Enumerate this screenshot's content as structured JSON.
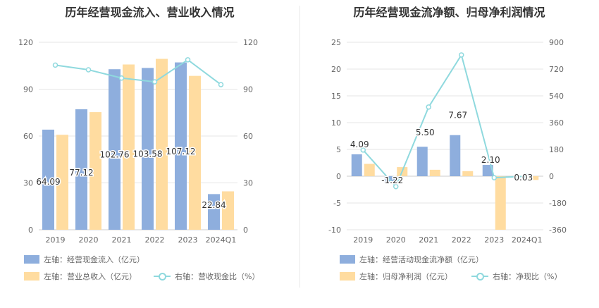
{
  "colors": {
    "bar_left": "#8eaedd",
    "bar_right": "#ffdca0",
    "line": "#8fd9de",
    "grid": "#e6e6e6",
    "text": "#666666"
  },
  "chart_data": [
    {
      "type": "bar",
      "title": "历年经营现金流入、营业收入情况",
      "categories": [
        "2019",
        "2020",
        "2021",
        "2022",
        "2023",
        "2024Q1"
      ],
      "left_axis": {
        "min": 0,
        "max": 120,
        "ticks": [
          "0",
          "30",
          "60",
          "90",
          "120"
        ]
      },
      "right_axis": {
        "min": 0,
        "max": 120,
        "ticks": [
          "0",
          "30",
          "60",
          "90",
          "120"
        ]
      },
      "series": [
        {
          "name": "左轴：经营现金流入（亿元）",
          "kind": "bar",
          "axis": "left",
          "values": [
            64.09,
            77.12,
            102.76,
            103.58,
            107.12,
            22.84
          ],
          "labels": [
            "64.09",
            "77.12",
            "102.76",
            "103.58",
            "107.12",
            "22.84"
          ]
        },
        {
          "name": "左轴：营业总收入（亿元）",
          "kind": "bar",
          "axis": "left",
          "values": [
            60.8,
            75.3,
            105.8,
            109.4,
            98.5,
            24.6
          ]
        },
        {
          "name": "右轴：营收现金比（%）",
          "kind": "line",
          "axis": "right",
          "values": [
            105.4,
            102.4,
            97.1,
            94.7,
            108.8,
            92.9
          ]
        }
      ],
      "grid": true,
      "legend_position": "bottom-left"
    },
    {
      "type": "bar",
      "title": "历年经营现金流净额、归母净利润情况",
      "categories": [
        "2019",
        "2020",
        "2021",
        "2022",
        "2023",
        "2024Q1"
      ],
      "left_axis": {
        "min": -10,
        "max": 25,
        "ticks": [
          "-10",
          "-5",
          "0",
          "5",
          "10",
          "15",
          "20",
          "25"
        ]
      },
      "right_axis": {
        "min": -360,
        "max": 900,
        "ticks": [
          "-360",
          "-180",
          "0",
          "180",
          "360",
          "540",
          "720",
          "900"
        ]
      },
      "series": [
        {
          "name": "左轴：经营活动现金流净额（亿元）",
          "kind": "bar",
          "axis": "left",
          "values": [
            4.09,
            -1.22,
            5.5,
            7.67,
            2.1,
            0.03
          ],
          "labels": [
            "4.09",
            "-1.22",
            "5.50",
            "7.67",
            "2.10",
            "0.03"
          ]
        },
        {
          "name": "左轴：归母净利润（亿元）",
          "kind": "bar",
          "axis": "left",
          "values": [
            2.3,
            1.7,
            1.2,
            0.95,
            -10.0,
            -0.7
          ]
        },
        {
          "name": "右轴：净现比（%）",
          "kind": "line",
          "axis": "right",
          "values": [
            176,
            -70,
            465,
            815,
            -10,
            0
          ]
        }
      ],
      "grid": true,
      "legend_position": "bottom-left"
    }
  ]
}
